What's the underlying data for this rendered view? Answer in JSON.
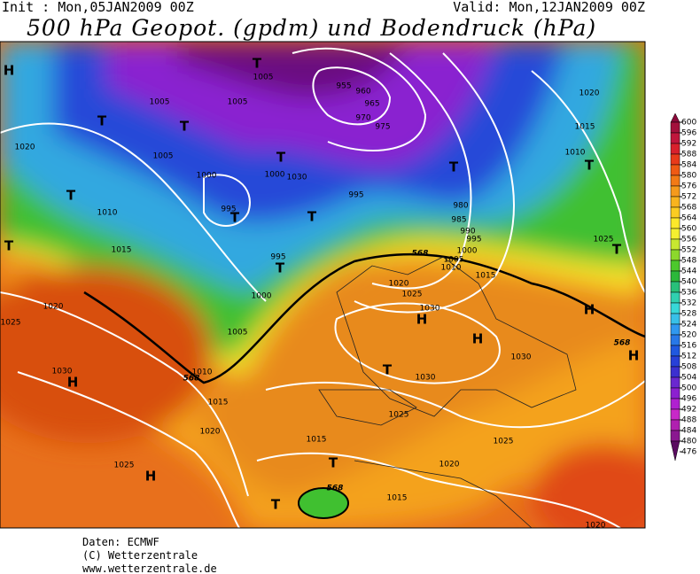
{
  "header": {
    "init": "Init : Mon,05JAN2009 00Z",
    "valid": "Valid: Mon,12JAN2009 00Z",
    "title": "500 hPa Geopot. (gpdm) und Bodendruck (hPa)"
  },
  "map": {
    "isobar_labels": [
      "1005",
      "1005",
      "1005",
      "955",
      "960",
      "965",
      "970",
      "975",
      "1020",
      "1005",
      "1000",
      "1000",
      "1030",
      "995",
      "995",
      "1010",
      "980",
      "985",
      "990",
      "995",
      "1000",
      "1005",
      "1010",
      "1015",
      "995",
      "1020",
      "1000",
      "1020",
      "1025",
      "1015",
      "1030",
      "1005",
      "1025",
      "1010",
      "1030",
      "1030",
      "1030",
      "1015",
      "1025",
      "1020",
      "1015",
      "1025",
      "1025",
      "1020",
      "1015",
      "1020",
      "1020",
      "1015",
      "1010",
      "1025"
    ],
    "contour_labels": [
      "568",
      "568",
      "568",
      "568"
    ],
    "pressure_centers": [
      "H",
      "T",
      "T",
      "T",
      "T",
      "T",
      "T",
      "T",
      "T",
      "T",
      "T",
      "T",
      "T",
      "H",
      "H",
      "H",
      "H",
      "T",
      "H",
      "H",
      "T",
      "T"
    ]
  },
  "colorbar": {
    "levels": [
      600,
      596,
      592,
      588,
      584,
      580,
      576,
      572,
      568,
      564,
      560,
      556,
      552,
      548,
      544,
      540,
      536,
      532,
      528,
      524,
      520,
      516,
      512,
      508,
      504,
      500,
      496,
      492,
      488,
      484,
      480,
      476
    ],
    "colors": [
      "#8b0a3a",
      "#a3103c",
      "#c0163c",
      "#d8202c",
      "#e83a1a",
      "#ef5a14",
      "#f27a16",
      "#f59a1c",
      "#f8b41e",
      "#fbcc22",
      "#fde82a",
      "#f4f030",
      "#c8e830",
      "#8cd82c",
      "#4cc82c",
      "#2cb83a",
      "#28c07a",
      "#30d0b0",
      "#38d8d8",
      "#38c0e8",
      "#3098f0",
      "#2878e8",
      "#2058e0",
      "#2840d8",
      "#3c30d0",
      "#6a28d0",
      "#8c20d0",
      "#b020d0",
      "#c828c8",
      "#b020b0",
      "#8a1890",
      "#5a0c60"
    ]
  },
  "footer": {
    "lines": [
      "Daten: ECMWF",
      "(C) Wetterzentrale",
      "www.wetterzentrale.de"
    ]
  }
}
